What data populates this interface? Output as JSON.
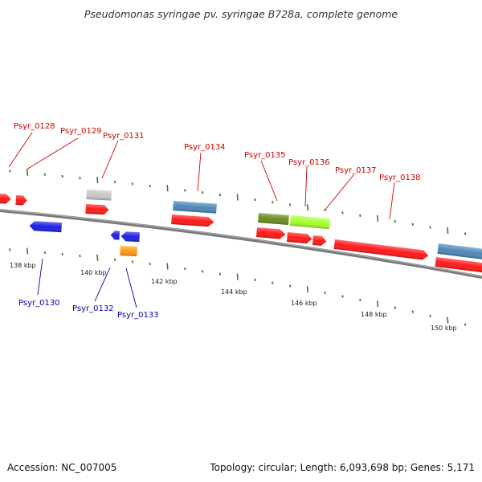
{
  "title": "Pseudomonas syringae pv. syringae B728a, complete genome",
  "footer": {
    "accession": "Accession: NC_007005",
    "summary": "Topology: circular; Length: 6,093,698 bp; Genes: 5,171"
  },
  "colors": {
    "cds_forward": "#ff1a1a",
    "cds_reverse": "#1f1fe6",
    "gene_feature": "#4f86b8",
    "olive_feature": "#6b8e23",
    "lime_feature": "#a6ff2a",
    "grey_feature": "#c0c0c0",
    "orange_feature": "#ff9a10",
    "tick": "#2a8a2a",
    "backbone": "#888888",
    "label_forward": "#cc0000",
    "label_reverse": "#0000aa"
  },
  "scale_labels": [
    "138 kbp",
    "140 kbp",
    "142 kbp",
    "144 kbp",
    "146 kbp",
    "148 kbp",
    "150 kbp"
  ],
  "forward_labels": [
    "Psyr_0128",
    "Psyr_0129",
    "Psyr_0131",
    "Psyr_0134",
    "Psyr_0135",
    "Psyr_0136",
    "Psyr_0137",
    "Psyr_0138"
  ],
  "reverse_labels": [
    "Psyr_0130",
    "Psyr_0132",
    "Psyr_0133"
  ]
}
